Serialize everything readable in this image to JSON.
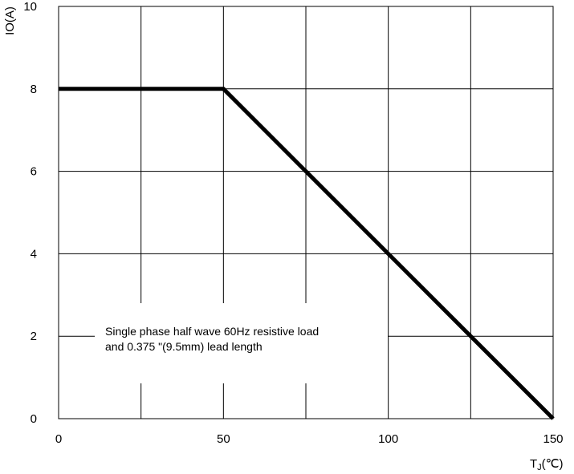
{
  "chart_data": {
    "type": "line",
    "xlabel": "T",
    "xlabel_sub": "J",
    "xlabel_unit": "(℃)",
    "ylabel": "IO(A)",
    "xlim": [
      0,
      150
    ],
    "ylim": [
      0,
      10
    ],
    "x_ticks": [
      "0",
      "50",
      "100",
      "150"
    ],
    "y_ticks": [
      "0",
      "2",
      "4",
      "6",
      "8",
      "10"
    ],
    "grid": true,
    "x_grid_step": 25,
    "y_grid_step": 2,
    "series": [
      {
        "x": [
          0,
          50,
          150
        ],
        "y": [
          8,
          8,
          0
        ],
        "color": "#000000"
      }
    ],
    "annotation": [
      "Single phase half wave 60Hz resistive load",
      "and 0.375 \"(9.5mm) lead length"
    ]
  }
}
